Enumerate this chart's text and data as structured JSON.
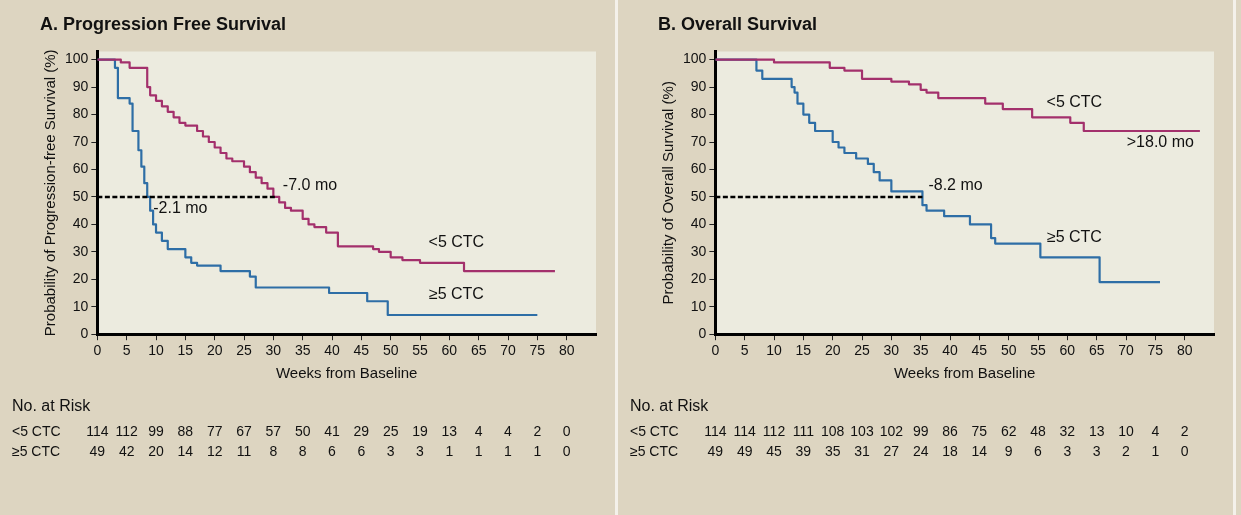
{
  "chart_data": [
    {
      "type": "step",
      "title": "A. Progression Free Survival",
      "xlabel": "Weeks from Baseline",
      "ylabel": "Probability of Progression-free Survival (%)",
      "xlim": [
        0,
        85
      ],
      "xticks": [
        0,
        5,
        10,
        15,
        20,
        25,
        30,
        35,
        40,
        45,
        50,
        55,
        60,
        65,
        70,
        75,
        80
      ],
      "ylim": [
        0,
        103
      ],
      "yticks": [
        0,
        10,
        20,
        30,
        40,
        50,
        60,
        70,
        80,
        90,
        100
      ],
      "grid": false,
      "legend": false,
      "marker": "none",
      "series": [
        {
          "name": "<5 CTC",
          "color": "#a3306c",
          "x": [
            0,
            4,
            5.5,
            8.5,
            9,
            10,
            11,
            12,
            13,
            14,
            15,
            17,
            18,
            19,
            20,
            21,
            22,
            23,
            25,
            26,
            27,
            28,
            29,
            30,
            31,
            32,
            33,
            35,
            36,
            37,
            39,
            41,
            42,
            47,
            48,
            50,
            52,
            55,
            62.5,
            78
          ],
          "values": [
            100,
            99,
            97,
            90,
            87,
            85,
            83,
            81,
            79,
            77,
            76,
            74,
            72,
            70,
            68,
            66,
            64,
            63,
            61,
            59,
            57,
            55,
            53,
            50,
            48,
            46,
            45,
            42,
            40,
            39,
            37,
            32,
            32,
            31,
            30,
            28,
            27,
            26,
            23,
            23
          ]
        },
        {
          "name": "≥5 CTC",
          "color": "#2e6ea6",
          "x": [
            0,
            3,
            3.5,
            5.5,
            6,
            7,
            7.5,
            8,
            8.5,
            9,
            9.5,
            10,
            11,
            12,
            15,
            16,
            17,
            21,
            26,
            27,
            39.5,
            46,
            49.5,
            75
          ],
          "values": [
            100,
            97,
            86,
            84,
            74,
            67,
            61,
            55,
            50,
            45,
            40,
            37,
            34,
            31,
            28,
            26,
            25,
            23,
            21,
            17,
            15,
            12,
            7,
            7
          ]
        },
        {
          "type": "line",
          "color": "#000000",
          "line_style": "dashed",
          "x": [
            0,
            30.6
          ],
          "values": [
            50,
            50
          ]
        }
      ],
      "annotations": [
        {
          "text": "-7.0 mo",
          "x": 30.6,
          "y": 50
        },
        {
          "text": "-2.1 mo",
          "x": 8.5,
          "y": 50
        },
        "No. at Risk",
        "<5 CTC",
        "114 112 99 88 77 67 57 50 41 29 25 19 13 4 4 2 0",
        "≥5 CTC",
        "49 42 20 14 12 11 8 8 6 6 3 3 1 1 1 1 0"
      ]
    },
    {
      "type": "step",
      "title": "B. Overall Survival",
      "xlabel": "Weeks from Baseline",
      "ylabel": "Probability of Overall Survival (%)",
      "xlim": [
        0,
        85
      ],
      "xticks": [
        0,
        5,
        10,
        15,
        20,
        25,
        30,
        35,
        40,
        45,
        50,
        55,
        60,
        65,
        70,
        75,
        80
      ],
      "ylim": [
        0,
        103
      ],
      "yticks": [
        0,
        10,
        20,
        30,
        40,
        50,
        60,
        70,
        80,
        90,
        100
      ],
      "grid": false,
      "legend": false,
      "marker": "none",
      "series": [
        {
          "name": "<5 CTC",
          "color": "#a3306c",
          "x": [
            0,
            10,
            19.5,
            22,
            25,
            30,
            33,
            35,
            36,
            38,
            46,
            49,
            54,
            60.5,
            62.8,
            82.6
          ],
          "values": [
            100,
            99,
            97,
            96,
            93,
            92,
            91,
            89,
            88,
            86,
            84,
            82,
            79,
            77,
            74,
            74
          ]
        },
        {
          "name": "≥5 CTC",
          "color": "#2e6ea6",
          "x": [
            0,
            7,
            8,
            13,
            13.5,
            14,
            15,
            16,
            17,
            20,
            21,
            22,
            24,
            26,
            27,
            28,
            30,
            35.3,
            36,
            39,
            43.4,
            47,
            47.7,
            55.4,
            65.5,
            75.8
          ],
          "values": [
            100,
            96,
            93,
            90,
            88,
            84,
            80,
            77,
            74,
            70,
            68,
            66,
            64,
            62,
            59,
            56,
            52,
            47,
            45,
            43,
            40,
            35,
            33,
            28,
            19,
            19
          ]
        },
        {
          "type": "line",
          "color": "#000000",
          "line_style": "dashed",
          "x": [
            0,
            35.3
          ],
          "values": [
            50,
            50
          ]
        }
      ],
      "annotations": [
        {
          "text": "-8.2 mo",
          "x": 35.3,
          "y": 50
        },
        {
          "text": ">18.0 mo",
          "x": 82.6,
          "y": 74
        },
        "No. at Risk",
        "<5 CTC",
        "114 114 112 111 108 103 102 99 86 75 62 48 32 13 10 4 2",
        "≥5 CTC",
        "49 49 45 39 35 31 27 24 18 14 9 6 3 3 2 1 0"
      ]
    }
  ]
}
